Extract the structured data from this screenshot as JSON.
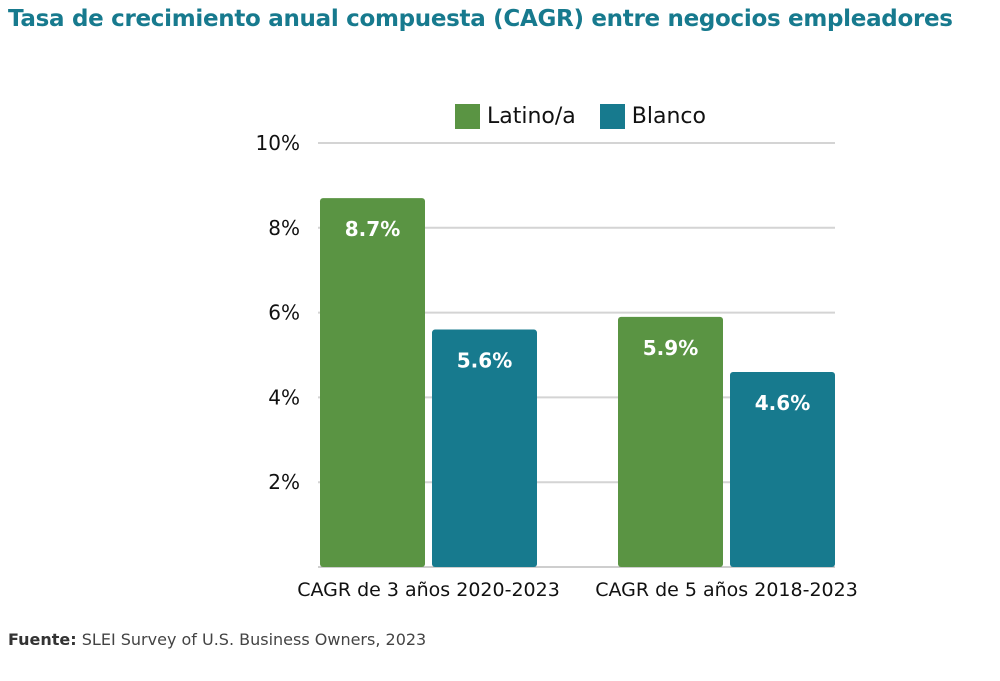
{
  "title": "Tasa de crecimiento anual compuesta (CAGR) entre negocios empleadores",
  "source": {
    "label": "Fuente:",
    "text": "SLEI Survey of U.S. Business Owners, 2023"
  },
  "chart_data": {
    "type": "bar",
    "categories": [
      "CAGR de 3 años 2020-2023",
      "CAGR de 5 años 2018-2023"
    ],
    "series": [
      {
        "name": "Latino/a",
        "color": "#5a9443",
        "values": [
          8.7,
          5.9
        ],
        "labels": [
          "8.7%",
          "5.9%"
        ]
      },
      {
        "name": "Blanco",
        "color": "#177a8e",
        "values": [
          5.6,
          4.6
        ],
        "labels": [
          "5.6%",
          "4.6%"
        ]
      }
    ],
    "y_ticks": [
      {
        "value": 2,
        "label": "2%"
      },
      {
        "value": 4,
        "label": "4%"
      },
      {
        "value": 6,
        "label": "6%"
      },
      {
        "value": 8,
        "label": "8%"
      },
      {
        "value": 10,
        "label": "10%"
      }
    ],
    "ylim": [
      0,
      10
    ],
    "grid": true,
    "legend_position": "top"
  }
}
